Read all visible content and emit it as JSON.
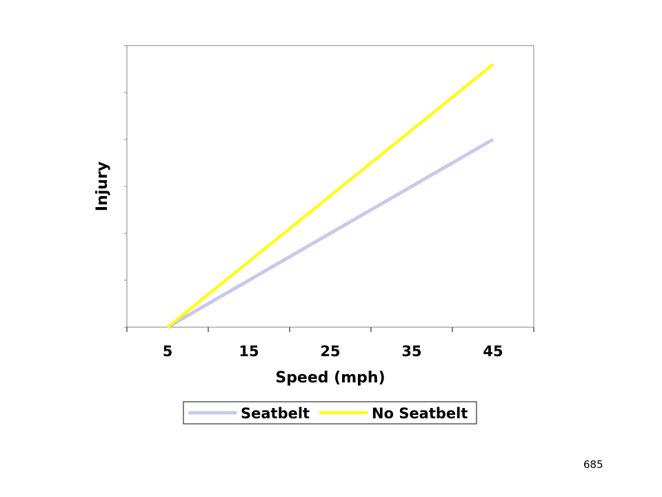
{
  "chart_data": {
    "type": "line",
    "xlabel": "Speed (mph)",
    "ylabel": "Injury",
    "categories": [
      "5",
      "15",
      "25",
      "35",
      "45"
    ],
    "series": [
      {
        "name": "Seatbelt",
        "values": [
          0,
          10,
          20,
          30,
          40
        ],
        "color": "#c8c8e8"
      },
      {
        "name": "No Seatbelt",
        "values": [
          0,
          14,
          28,
          42,
          56
        ],
        "color": "#ffff00"
      }
    ],
    "ylim": [
      0,
      60
    ],
    "legend_position": "bottom",
    "grid": false
  },
  "page_number": "685"
}
